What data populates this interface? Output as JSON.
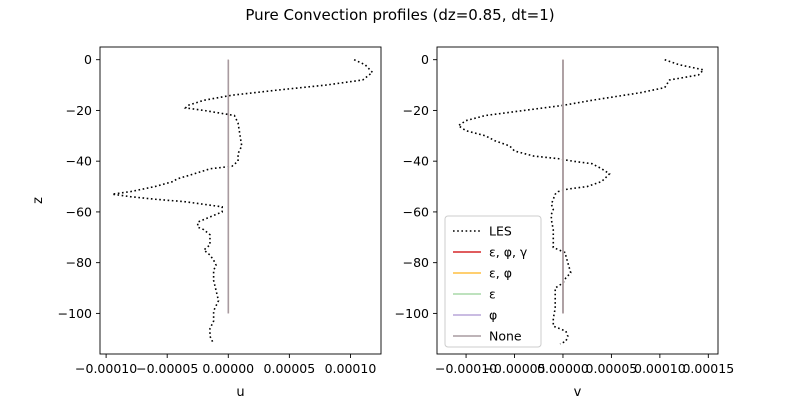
{
  "title": "Pure Convection profiles (dz=0.85, dt=1)",
  "chart_data": [
    {
      "type": "line",
      "xlabel": "u",
      "ylabel": "z",
      "xlim": [
        -0.000105,
        0.000125
      ],
      "ylim": [
        -116,
        5
      ],
      "x_ticks": [
        -0.0001,
        -5e-05,
        0.0,
        5e-05,
        0.0001
      ],
      "x_tick_labels": [
        "−0.00010",
        "−0.00005",
        "0.00000",
        "0.00005",
        "0.00010"
      ],
      "y_ticks": [
        0,
        -20,
        -40,
        -60,
        -80,
        -100
      ],
      "y_tick_labels": [
        "0",
        "−20",
        "−40",
        "−60",
        "−80",
        "−100"
      ],
      "series": [
        {
          "name": "LES",
          "color": "#000000",
          "style": "dotted",
          "x": [
            0.000103,
            0.000112,
            0.000118,
            0.00011,
            8e-05,
            4e-05,
            3e-06,
            -2e-05,
            -3.3e-05,
            -3.5e-05,
            -2e-05,
            5e-06,
            8e-06,
            9e-06,
            1e-05,
            1.1e-05,
            8e-06,
            8e-06,
            3e-06,
            -1.5e-05,
            -2.8e-05,
            -4.2e-05,
            -4.5e-05,
            -6e-05,
            -8e-05,
            -9.5e-05,
            -8e-05,
            -6e-05,
            -3.5e-05,
            -2e-05,
            -5e-06,
            -5e-06,
            -1.5e-05,
            -2.5e-05,
            -2.5e-05,
            -2e-05,
            -1.5e-05,
            -1.5e-05,
            -1.5e-05,
            -2e-05,
            -1.5e-05,
            -1.2e-05,
            -1e-05,
            -1.2e-05,
            -1.2e-05,
            -1e-05,
            -8e-06,
            -1.2e-05,
            -1.2e-05,
            -1.5e-05,
            -1.5e-05,
            -1.2e-05
          ],
          "y": [
            0,
            -2,
            -5,
            -8,
            -10,
            -12,
            -14,
            -16,
            -18,
            -19,
            -20,
            -22,
            -25,
            -28,
            -31,
            -34,
            -37,
            -40,
            -42,
            -43,
            -45,
            -47,
            -48,
            -50,
            -52,
            -53,
            -54,
            -55,
            -56,
            -57,
            -58,
            -60,
            -62,
            -64,
            -66,
            -67,
            -69,
            -71,
            -73,
            -75,
            -77,
            -79,
            -81,
            -83,
            -87,
            -91,
            -95,
            -99,
            -103,
            -106,
            -109,
            -112
          ]
        },
        {
          "name": "ε, φ, γ",
          "color": "#d62728",
          "style": "solid",
          "x": [
            0.0,
            0.0
          ],
          "y": [
            0,
            -100
          ]
        },
        {
          "name": "ε, φ",
          "color": "#ffbf40",
          "style": "solid",
          "x": [
            0.0,
            0.0
          ],
          "y": [
            0,
            -100
          ]
        },
        {
          "name": "ε",
          "color": "#a9d8a9",
          "style": "solid",
          "x": [
            0.0,
            0.0
          ],
          "y": [
            0,
            -100
          ]
        },
        {
          "name": "φ",
          "color": "#b8a6d9",
          "style": "solid",
          "x": [
            0.0,
            0.0
          ],
          "y": [
            0,
            -100
          ]
        },
        {
          "name": "None",
          "color": "#a89ba0",
          "style": "solid",
          "x": [
            0.0,
            0.0
          ],
          "y": [
            0,
            -100
          ]
        }
      ]
    },
    {
      "type": "line",
      "xlabel": "v",
      "ylabel": "",
      "xlim": [
        -0.00013,
        0.00016
      ],
      "ylim": [
        -116,
        5
      ],
      "x_ticks": [
        -0.0001,
        -5e-05,
        0.0,
        5e-05,
        0.0001,
        0.00015
      ],
      "x_tick_labels": [
        "−0.00010",
        "−0.00005",
        "0.00000",
        "0.00005",
        "0.00010",
        "0.00015"
      ],
      "y_ticks": [
        0,
        -20,
        -40,
        -60,
        -80,
        -100
      ],
      "y_tick_labels": [
        "0",
        "−20",
        "−40",
        "−60",
        "−80",
        "−100"
      ],
      "legend": "lower-left",
      "series": [
        {
          "name": "LES",
          "color": "#000000",
          "style": "dotted",
          "x": [
            0.000105,
            0.00012,
            0.000145,
            0.00014,
            0.00011,
            0.000105,
            8e-05,
            3e-05,
            0.0,
            -4e-05,
            -8e-05,
            -0.0001,
            -0.000108,
            -0.0001,
            -8e-05,
            -7e-05,
            -5.5e-05,
            -5e-05,
            -3e-05,
            -5e-06,
            1e-05,
            3e-05,
            4e-05,
            4.8e-05,
            4e-05,
            2.5e-05,
            5e-06,
            -5e-06,
            -8e-06,
            -1e-05,
            -1.2e-05,
            -1e-05,
            -1.2e-05,
            -1.2e-05,
            -1e-05,
            -1e-05,
            -1e-05,
            2e-06,
            5e-06,
            8e-06,
            3e-06,
            0.0,
            -8e-06,
            -8e-06,
            -8e-06,
            -1e-05,
            -1e-05,
            3e-06,
            5e-06,
            3e-06,
            -3e-06
          ],
          "y": [
            0,
            -2,
            -4,
            -6,
            -8,
            -11,
            -13,
            -16,
            -18,
            -20,
            -22,
            -24,
            -26,
            -28,
            -30,
            -32,
            -34,
            -36,
            -38,
            -39,
            -40,
            -41,
            -43,
            -45,
            -48,
            -50,
            -51,
            -52,
            -53,
            -55,
            -57,
            -59,
            -61,
            -63,
            -67,
            -71,
            -74,
            -76,
            -80,
            -84,
            -86,
            -88,
            -90,
            -94,
            -98,
            -102,
            -105,
            -107,
            -109,
            -111,
            -112
          ]
        },
        {
          "name": "ε, φ, γ",
          "color": "#d62728",
          "style": "solid",
          "x": [
            0.0,
            0.0
          ],
          "y": [
            0,
            -100
          ]
        },
        {
          "name": "ε, φ",
          "color": "#ffbf40",
          "style": "solid",
          "x": [
            0.0,
            0.0
          ],
          "y": [
            0,
            -100
          ]
        },
        {
          "name": "ε",
          "color": "#a9d8a9",
          "style": "solid",
          "x": [
            0.0,
            0.0
          ],
          "y": [
            0,
            -100
          ]
        },
        {
          "name": "φ",
          "color": "#b8a6d9",
          "style": "solid",
          "x": [
            0.0,
            0.0
          ],
          "y": [
            0,
            -100
          ]
        },
        {
          "name": "None",
          "color": "#a89ba0",
          "style": "solid",
          "x": [
            0.0,
            0.0
          ],
          "y": [
            0,
            -100
          ]
        }
      ]
    }
  ]
}
